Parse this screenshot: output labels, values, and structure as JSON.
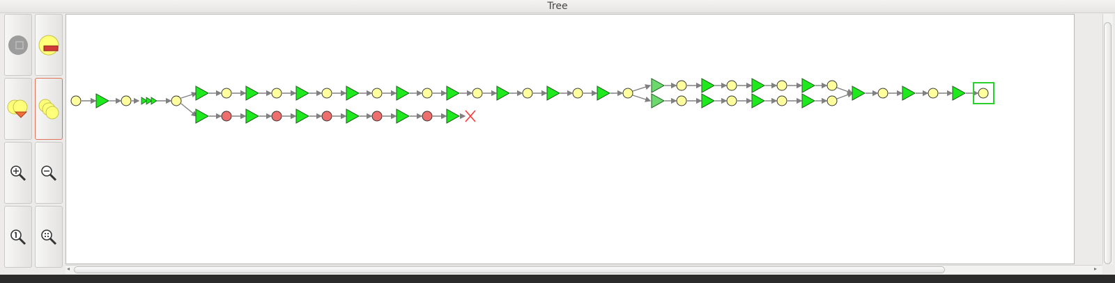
{
  "window": {
    "title": "Tree"
  },
  "toolbar": {
    "buttons": [
      {
        "name": "collapse-button",
        "icon": "gray-node-collapse-icon",
        "active": false
      },
      {
        "name": "hide-node-button",
        "icon": "yellow-node-minus-icon",
        "active": false
      },
      {
        "name": "expand-button",
        "icon": "yellow-nodes-expand-icon",
        "active": false
      },
      {
        "name": "show-all-button",
        "icon": "yellow-nodes-stack-icon",
        "active": true
      },
      {
        "name": "zoom-in-button",
        "icon": "zoom-in-icon",
        "active": false
      },
      {
        "name": "zoom-out-button",
        "icon": "zoom-out-icon",
        "active": false
      },
      {
        "name": "zoom-reset-button",
        "icon": "zoom-1-to-1-icon",
        "active": false
      },
      {
        "name": "zoom-fit-button",
        "icon": "zoom-fit-icon",
        "active": false
      }
    ]
  },
  "colors": {
    "choice_node": "#ffff9e",
    "failed_node": "#ee6e6e",
    "action_triangle": "#1fe81f",
    "action_triangle_pale": "#6dd86d",
    "edge": "#808080",
    "selection": "#2ad12a",
    "dead_end": "#ff3333",
    "active_border": "#e0735a"
  },
  "tree": {
    "legend_types": [
      "choice-node",
      "failed-node",
      "action-triangle",
      "collapsed-action-chain",
      "dead-end-cross"
    ],
    "selected_node": "final-choice-node"
  }
}
